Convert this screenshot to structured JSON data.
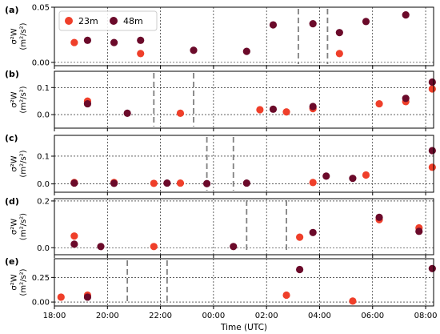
{
  "figure": {
    "xlabel": "Time (UTC)",
    "x_tick_labels": [
      "18:00",
      "20:00",
      "22:00",
      "00:00",
      "02:00",
      "04:00",
      "06:00",
      "08:00"
    ],
    "legend": [
      {
        "name": "23m",
        "color": "#ef3f2a"
      },
      {
        "name": "48m",
        "color": "#6b0a2a"
      }
    ]
  },
  "chart_data": [
    {
      "type": "scatter",
      "panel_label": "(a)",
      "ylabel": "σ²W (m²/s²)",
      "ylim": [
        -0.003,
        0.05
      ],
      "yticks": [
        0.0,
        0.05
      ],
      "ytick_labels": [
        "0.00",
        "0.05"
      ],
      "xlim_hours": [
        18,
        32.3
      ],
      "vlines_hours": [
        27.2,
        28.3
      ],
      "grid": true,
      "series": [
        {
          "name": "23m",
          "color": "#ef3f2a",
          "points": [
            [
              18.75,
              0.018
            ],
            [
              21.25,
              0.008
            ],
            [
              28.75,
              0.008
            ]
          ]
        },
        {
          "name": "48m",
          "color": "#6b0a2a",
          "points": [
            [
              19.25,
              0.02
            ],
            [
              20.25,
              0.018
            ],
            [
              21.25,
              0.02
            ],
            [
              23.25,
              0.011
            ],
            [
              25.25,
              0.01
            ],
            [
              26.25,
              0.034
            ],
            [
              27.75,
              0.035
            ],
            [
              28.75,
              0.027
            ],
            [
              29.75,
              0.037
            ],
            [
              31.25,
              0.043
            ]
          ]
        }
      ]
    },
    {
      "type": "scatter",
      "panel_label": "(b)",
      "ylabel": "σ²W (m²/s²)",
      "ylim": [
        -0.05,
        0.16
      ],
      "yticks": [
        0.0,
        0.1
      ],
      "ytick_labels": [
        "0.0",
        "0.1"
      ],
      "xlim_hours": [
        18,
        32.3
      ],
      "vlines_hours": [
        21.75,
        23.25
      ],
      "grid": true,
      "series": [
        {
          "name": "23m",
          "color": "#ef3f2a",
          "points": [
            [
              19.25,
              0.05
            ],
            [
              22.75,
              0.005
            ],
            [
              25.75,
              0.018
            ],
            [
              26.75,
              0.01
            ],
            [
              27.75,
              0.022
            ],
            [
              30.25,
              0.04
            ],
            [
              31.25,
              0.048
            ],
            [
              32.25,
              0.095
            ]
          ]
        },
        {
          "name": "48m",
          "color": "#6b0a2a",
          "points": [
            [
              19.25,
              0.04
            ],
            [
              20.75,
              0.005
            ],
            [
              26.25,
              0.02
            ],
            [
              27.75,
              0.03
            ],
            [
              31.25,
              0.06
            ],
            [
              32.25,
              0.12
            ]
          ]
        }
      ]
    },
    {
      "type": "scatter",
      "panel_label": "(c)",
      "ylabel": "σ²W (m²/s²)",
      "ylim": [
        -0.03,
        0.175
      ],
      "yticks": [
        0.0,
        0.1
      ],
      "ytick_labels": [
        "0.0",
        "0.1"
      ],
      "xlim_hours": [
        18,
        32.3
      ],
      "vlines_hours": [
        23.75,
        24.75
      ],
      "grid": true,
      "series": [
        {
          "name": "23m",
          "color": "#ef3f2a",
          "points": [
            [
              18.75,
              0.005
            ],
            [
              20.25,
              0.005
            ],
            [
              21.75,
              0.002
            ],
            [
              22.75,
              0.003
            ],
            [
              27.75,
              0.005
            ],
            [
              29.75,
              0.032
            ],
            [
              32.25,
              0.06
            ]
          ]
        },
        {
          "name": "48m",
          "color": "#6b0a2a",
          "points": [
            [
              18.75,
              0.003
            ],
            [
              20.25,
              0.002
            ],
            [
              22.25,
              0.003
            ],
            [
              23.75,
              0.001
            ],
            [
              25.25,
              0.003
            ],
            [
              28.25,
              0.028
            ],
            [
              29.25,
              0.02
            ],
            [
              32.25,
              0.12
            ]
          ]
        }
      ]
    },
    {
      "type": "scatter",
      "panel_label": "(d)",
      "ylabel": "σ²W (m²/s²)",
      "ylim": [
        -0.03,
        0.21
      ],
      "yticks": [
        0.0,
        0.2
      ],
      "ytick_labels": [
        "0.0",
        "0.2"
      ],
      "xlim_hours": [
        18,
        32.3
      ],
      "vlines_hours": [
        25.25,
        26.75
      ],
      "grid": true,
      "series": [
        {
          "name": "23m",
          "color": "#ef3f2a",
          "points": [
            [
              18.75,
              0.05
            ],
            [
              21.75,
              0.005
            ],
            [
              27.25,
              0.045
            ],
            [
              30.25,
              0.12
            ],
            [
              31.75,
              0.085
            ]
          ]
        },
        {
          "name": "48m",
          "color": "#6b0a2a",
          "points": [
            [
              18.75,
              0.015
            ],
            [
              19.75,
              0.005
            ],
            [
              24.75,
              0.005
            ],
            [
              27.75,
              0.065
            ],
            [
              30.25,
              0.13
            ],
            [
              31.75,
              0.07
            ]
          ]
        }
      ]
    },
    {
      "type": "scatter",
      "panel_label": "(e)",
      "ylabel": "σ²W (m²/s²)",
      "ylim": [
        -0.04,
        0.44
      ],
      "yticks": [
        0.0,
        0.25
      ],
      "ytick_labels": [
        "0.00",
        "0.25"
      ],
      "xlim_hours": [
        18,
        32.3
      ],
      "vlines_hours": [
        20.75,
        22.25
      ],
      "grid": true,
      "series": [
        {
          "name": "23m",
          "color": "#ef3f2a",
          "points": [
            [
              18.25,
              0.05
            ],
            [
              19.25,
              0.07
            ],
            [
              26.75,
              0.07
            ],
            [
              29.25,
              0.01
            ]
          ]
        },
        {
          "name": "48m",
          "color": "#6b0a2a",
          "points": [
            [
              19.25,
              0.05
            ],
            [
              27.25,
              0.33
            ],
            [
              32.25,
              0.34
            ]
          ]
        }
      ]
    }
  ]
}
